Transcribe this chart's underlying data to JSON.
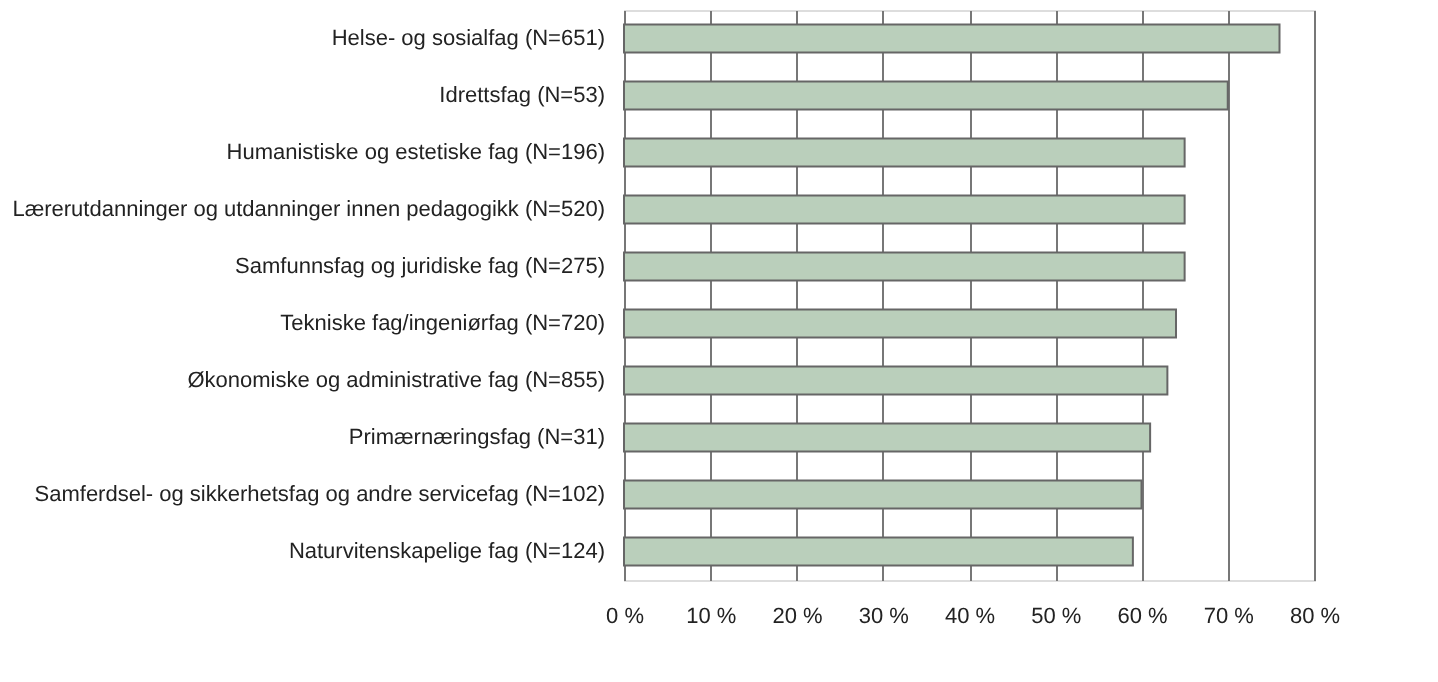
{
  "chart_data": {
    "type": "bar",
    "orientation": "horizontal",
    "categories": [
      "Helse- og sosialfag (N=651)",
      "Idrettsfag (N=53)",
      "Humanistiske og estetiske fag (N=196)",
      "Lærerutdanninger og utdanninger innen pedagogikk (N=520)",
      "Samfunnsfag og juridiske fag (N=275)",
      "Tekniske fag/ingeniørfag (N=720)",
      "Økonomiske og administrative fag (N=855)",
      "Primærnæringsfag (N=31)",
      "Samferdsel- og sikkerhetsfag og andre servicefag (N=102)",
      "Naturvitenskapelige fag (N=124)"
    ],
    "values": [
      76,
      70,
      65,
      65,
      65,
      64,
      63,
      61,
      60,
      59
    ],
    "color": "#bacfbb",
    "xlim": [
      0,
      80
    ],
    "xticks": [
      {
        "value": 0,
        "label": "0 %"
      },
      {
        "value": 10,
        "label": "10 %"
      },
      {
        "value": 20,
        "label": "20 %"
      },
      {
        "value": 30,
        "label": "30 %"
      },
      {
        "value": 40,
        "label": "40 %"
      },
      {
        "value": 50,
        "label": "50 %"
      },
      {
        "value": 60,
        "label": "60 %"
      },
      {
        "value": 70,
        "label": "70 %"
      },
      {
        "value": 80,
        "label": "80 %"
      }
    ],
    "grid": "x"
  }
}
